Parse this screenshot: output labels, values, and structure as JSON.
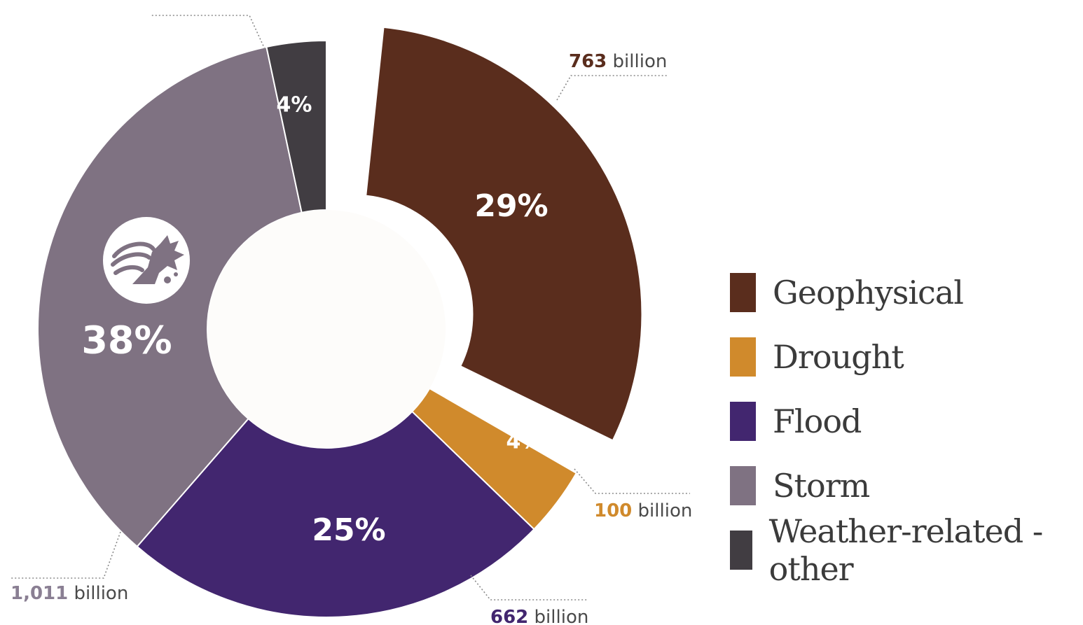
{
  "chart_data": {
    "type": "pie",
    "style": "donut, exploded slices",
    "slices": [
      {
        "name": "Geophysical",
        "percent_label": "29%",
        "value": 763,
        "value_label": "763",
        "unit": "billion",
        "color": "#5a2d1d"
      },
      {
        "name": "Drought",
        "percent_label": "4%",
        "value": 100,
        "value_label": "100",
        "unit": "billion",
        "color": "#d08a2c"
      },
      {
        "name": "Flood",
        "percent_label": "25%",
        "value": 662,
        "value_label": "662",
        "unit": "billion",
        "color": "#42266f"
      },
      {
        "name": "Storm",
        "percent_label": "38%",
        "value": 1011,
        "value_label": "1,011",
        "unit": "billion",
        "color": "#7f7282"
      },
      {
        "name": "Weather-related - other",
        "percent_label": "4%",
        "value": null,
        "value_label": "",
        "unit": "",
        "color": "#413d42"
      }
    ],
    "legend": {
      "placement": "right",
      "entries": [
        "Geophysical",
        "Drought",
        "Flood",
        "Storm",
        "Weather-related - other"
      ]
    },
    "icon": "storm-wind-icon"
  },
  "colors": {
    "callout_geophysical": "#5a2d1d",
    "callout_drought": "#d08a2c",
    "callout_flood": "#42266f",
    "callout_storm": "#8a7f93",
    "donut_hole": "#fdfcfa"
  }
}
